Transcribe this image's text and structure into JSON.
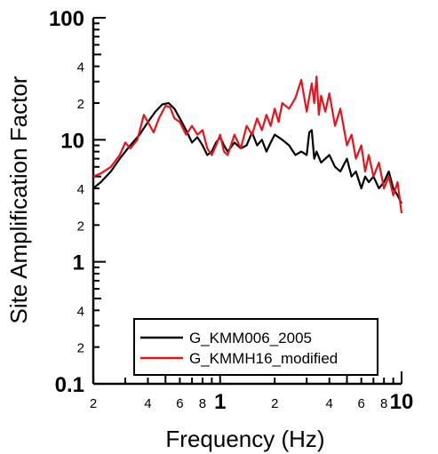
{
  "chart_data": {
    "type": "line",
    "xlabel": "Frequency (Hz)",
    "ylabel": "Site Amplification Factor",
    "x_scale": "log",
    "y_scale": "log",
    "xlim": [
      0.2,
      10
    ],
    "ylim": [
      0.1,
      100
    ],
    "x_major_ticks": [
      {
        "value": 1,
        "label": "1"
      },
      {
        "value": 10,
        "label": "10"
      }
    ],
    "x_minor_ticks": [
      {
        "value": 0.2,
        "label": "2"
      },
      {
        "value": 0.4,
        "label": "4"
      },
      {
        "value": 0.6,
        "label": "6"
      },
      {
        "value": 0.8,
        "label": "8"
      },
      {
        "value": 2,
        "label": "2"
      },
      {
        "value": 4,
        "label": "4"
      },
      {
        "value": 6,
        "label": "6"
      },
      {
        "value": 8,
        "label": "8"
      }
    ],
    "y_major_ticks": [
      {
        "value": 0.1,
        "label": "0.1"
      },
      {
        "value": 1,
        "label": "1"
      },
      {
        "value": 10,
        "label": "10"
      },
      {
        "value": 100,
        "label": "100"
      }
    ],
    "y_minor_ticks": [
      {
        "value": 2,
        "label": "2"
      },
      {
        "value": 4,
        "label": "4"
      },
      {
        "value": 20,
        "label": "2"
      },
      {
        "value": 40,
        "label": "4"
      },
      {
        "value": 0.2,
        "label": "2"
      },
      {
        "value": 0.4,
        "label": "4"
      }
    ],
    "legend_position": "bottom-right",
    "series": [
      {
        "name": "G_KMM006_2005",
        "color": "#000000",
        "x": [
          0.2,
          0.22,
          0.25,
          0.28,
          0.32,
          0.36,
          0.4,
          0.44,
          0.48,
          0.52,
          0.56,
          0.6,
          0.65,
          0.7,
          0.75,
          0.8,
          0.85,
          0.9,
          0.95,
          1.0,
          1.05,
          1.1,
          1.2,
          1.3,
          1.4,
          1.5,
          1.6,
          1.7,
          1.8,
          1.9,
          2.0,
          2.2,
          2.4,
          2.6,
          2.8,
          3.0,
          3.1,
          3.2,
          3.3,
          3.4,
          3.6,
          3.8,
          4.0,
          4.3,
          4.6,
          5.0,
          5.3,
          5.6,
          6.0,
          6.3,
          6.6,
          7.0,
          7.5,
          8.0,
          8.5,
          9.0,
          9.5,
          10.0
        ],
        "y": [
          4.0,
          4.5,
          5.5,
          7.0,
          9.0,
          11.0,
          14.0,
          17.0,
          19.5,
          20.0,
          18.0,
          15.0,
          12.0,
          9.5,
          10.5,
          9.0,
          7.5,
          8.0,
          9.5,
          10.5,
          9.0,
          8.0,
          9.5,
          8.5,
          9.0,
          11.5,
          9.0,
          10.0,
          8.0,
          9.5,
          11.0,
          10.0,
          9.0,
          7.5,
          8.0,
          7.5,
          11.5,
          12.0,
          7.0,
          8.0,
          6.5,
          7.0,
          7.5,
          6.0,
          5.5,
          7.0,
          5.0,
          5.5,
          4.0,
          5.0,
          4.5,
          5.0,
          4.0,
          4.5,
          5.5,
          4.0,
          3.5,
          3.0
        ]
      },
      {
        "name": "G_KMMH16_modified",
        "color": "#e8141c",
        "x": [
          0.2,
          0.22,
          0.25,
          0.28,
          0.3,
          0.32,
          0.35,
          0.38,
          0.4,
          0.43,
          0.46,
          0.5,
          0.53,
          0.56,
          0.6,
          0.65,
          0.7,
          0.75,
          0.8,
          0.85,
          0.9,
          0.95,
          1.0,
          1.05,
          1.1,
          1.2,
          1.3,
          1.4,
          1.5,
          1.6,
          1.7,
          1.8,
          1.9,
          2.0,
          2.1,
          2.2,
          2.4,
          2.6,
          2.8,
          3.0,
          3.2,
          3.3,
          3.4,
          3.5,
          3.6,
          3.8,
          4.0,
          4.3,
          4.6,
          5.0,
          5.3,
          5.6,
          6.0,
          6.3,
          6.6,
          7.0,
          7.5,
          8.0,
          8.5,
          9.0,
          9.5,
          10.0
        ],
        "y": [
          5.0,
          5.3,
          6.0,
          7.5,
          9.5,
          8.5,
          10.0,
          16.0,
          14.0,
          11.5,
          15.0,
          19.0,
          18.5,
          15.0,
          14.0,
          11.0,
          13.0,
          11.0,
          12.0,
          8.5,
          7.5,
          9.0,
          11.0,
          8.0,
          7.5,
          11.0,
          8.5,
          13.0,
          11.0,
          15.0,
          12.0,
          16.0,
          13.0,
          18.0,
          14.0,
          20.0,
          18.0,
          22.0,
          31.0,
          17.0,
          29.0,
          20.0,
          33.0,
          16.0,
          23.0,
          17.0,
          24.0,
          13.0,
          18.0,
          9.0,
          11.0,
          7.0,
          9.0,
          5.5,
          7.5,
          5.0,
          6.5,
          4.0,
          5.0,
          3.5,
          4.5,
          2.5
        ]
      }
    ]
  }
}
